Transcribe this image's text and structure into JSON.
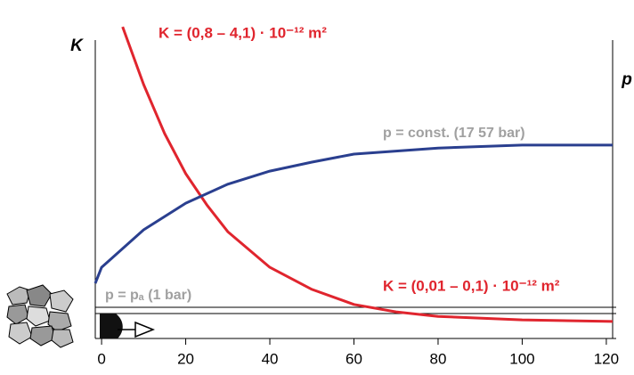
{
  "chart_data": {
    "type": "line",
    "left_axis_label": "K",
    "right_axis_label": "p",
    "annotations": [
      {
        "text": "K = (0,8 – 4,1) · 10⁻¹² m²",
        "color": "#e0252e"
      },
      {
        "text": "p = const. (17 57 bar)",
        "color": "#a0a0a0"
      },
      {
        "text": "K = (0,01 – 0,1) · 10⁻¹² m²",
        "color": "#e0252e"
      },
      {
        "text": "p = pₐ (1 bar)",
        "color": "#a0a0a0"
      }
    ],
    "xlim": [
      -1.5,
      121.5
    ],
    "xticks": [
      0,
      20,
      40,
      60,
      80,
      100,
      120
    ],
    "ylim": [
      0,
      100
    ],
    "series": [
      {
        "color": "#e0252e",
        "x": [
          5,
          10,
          15,
          20,
          25,
          30,
          40,
          50,
          60,
          70,
          80,
          100,
          121.5
        ],
        "values": [
          97.2,
          79.2,
          63.9,
          51.4,
          41.7,
          33.3,
          22.2,
          15.3,
          10.6,
          8.3,
          6.9,
          5.8,
          5.3
        ]
      },
      {
        "color": "#2a3f8f",
        "x": [
          -1.5,
          0,
          10,
          20,
          30,
          40,
          50,
          60,
          80,
          100,
          121.5
        ],
        "values": [
          17.2,
          22.2,
          33.9,
          42.2,
          48.1,
          52.2,
          55.0,
          57.5,
          59.4,
          60.3,
          60.3
        ]
      }
    ]
  }
}
